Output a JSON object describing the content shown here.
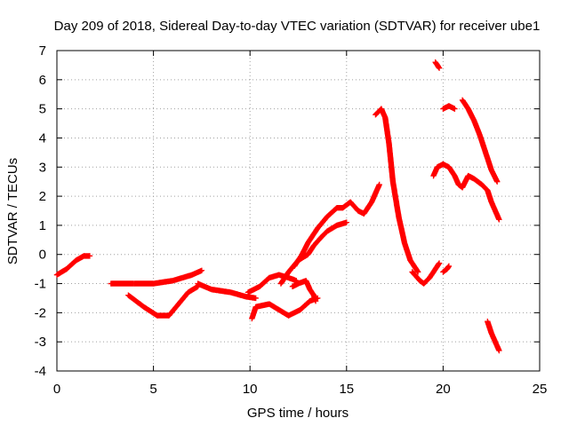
{
  "chart_data": {
    "type": "scatter",
    "title": "Day 209 of 2018, Sidereal Day-to-day VTEC variation (SDTVAR) for receiver ube1",
    "xlabel": "GPS time / hours",
    "ylabel": "SDTVAR / TECUs",
    "xlim": [
      0,
      25
    ],
    "ylim": [
      -4,
      7
    ],
    "xticks": [
      "0",
      "5",
      "10",
      "15",
      "20",
      "25"
    ],
    "yticks": [
      "-4",
      "-3",
      "-2",
      "-1",
      "0",
      "1",
      "2",
      "3",
      "4",
      "5",
      "6",
      "7"
    ],
    "grid": true,
    "marker": "+",
    "color": "#ff0000",
    "series": [
      {
        "name": "seg1",
        "x": [
          0,
          0.5,
          1.0,
          1.4,
          1.7
        ],
        "y": [
          -0.7,
          -0.5,
          -0.2,
          -0.05,
          -0.05
        ]
      },
      {
        "name": "seg2",
        "x": [
          2.8,
          4,
          5,
          6,
          6.5,
          7,
          7.5
        ],
        "y": [
          -1.0,
          -1.0,
          -1.0,
          -0.9,
          -0.8,
          -0.7,
          -0.55
        ]
      },
      {
        "name": "seg3",
        "x": [
          3.7,
          4.5,
          5.2,
          5.8,
          6.3,
          6.8,
          7.3
        ],
        "y": [
          -1.4,
          -1.8,
          -2.1,
          -2.1,
          -1.7,
          -1.3,
          -1.1
        ]
      },
      {
        "name": "seg4",
        "x": [
          7.3,
          8,
          9,
          9.8,
          10.3
        ],
        "y": [
          -1.0,
          -1.2,
          -1.3,
          -1.45,
          -1.5
        ]
      },
      {
        "name": "seg5",
        "x": [
          9.9,
          10.5,
          11.0,
          11.5,
          12.0,
          12.4
        ],
        "y": [
          -1.3,
          -1.1,
          -0.8,
          -0.7,
          -0.8,
          -0.9
        ]
      },
      {
        "name": "seg6",
        "x": [
          10.1,
          10.3,
          11,
          11.5,
          12,
          12.6,
          13.1,
          13.5
        ],
        "y": [
          -2.2,
          -1.8,
          -1.7,
          -1.9,
          -2.1,
          -1.9,
          -1.6,
          -1.5
        ]
      },
      {
        "name": "seg7",
        "x": [
          12.2,
          12.5,
          12.9,
          13.1,
          13.3,
          13.4
        ],
        "y": [
          -1.1,
          -1.0,
          -0.9,
          -1.2,
          -1.4,
          -1.6
        ]
      },
      {
        "name": "seg8",
        "x": [
          11.6,
          12.0,
          12.5,
          13.0,
          13.3,
          13.7,
          14.0,
          14.5,
          15.0
        ],
        "y": [
          -1.0,
          -0.6,
          -0.2,
          0.0,
          0.3,
          0.6,
          0.8,
          1.0,
          1.1
        ]
      },
      {
        "name": "seg9",
        "x": [
          12.3,
          12.7,
          13.0,
          13.5,
          14.0,
          14.5,
          14.8,
          15.2,
          15.6,
          15.9,
          16.3,
          16.7
        ],
        "y": [
          -0.4,
          0.0,
          0.4,
          0.9,
          1.3,
          1.6,
          1.6,
          1.8,
          1.5,
          1.4,
          1.8,
          2.4
        ]
      },
      {
        "name": "seg10",
        "x": [
          16.5,
          16.8,
          17.0,
          17.2,
          17.4,
          17.7,
          18.0,
          18.3,
          18.7
        ],
        "y": [
          4.8,
          5.0,
          4.7,
          3.8,
          2.5,
          1.3,
          0.4,
          -0.2,
          -0.6
        ]
      },
      {
        "name": "seg11",
        "x": [
          18.4,
          18.8,
          19.0,
          19.3,
          19.6,
          19.8
        ],
        "y": [
          -0.6,
          -0.9,
          -1.0,
          -0.8,
          -0.5,
          -0.3
        ]
      },
      {
        "name": "seg12",
        "x": [
          20.0,
          20.2,
          20.3
        ],
        "y": [
          -0.6,
          -0.5,
          -0.4
        ]
      },
      {
        "name": "seg13",
        "x": [
          19.6,
          19.8
        ],
        "y": [
          6.6,
          6.4
        ]
      },
      {
        "name": "seg14",
        "x": [
          20.0,
          20.3,
          20.6
        ],
        "y": [
          5.0,
          5.1,
          5.0
        ]
      },
      {
        "name": "seg15",
        "x": [
          19.5,
          19.7,
          20.0,
          20.3,
          20.6,
          20.8,
          21.0,
          21.3,
          21.6,
          22.0,
          22.3,
          22.5,
          22.7,
          22.9
        ],
        "y": [
          2.7,
          3.0,
          3.1,
          3.0,
          2.7,
          2.4,
          2.3,
          2.7,
          2.6,
          2.4,
          2.2,
          1.8,
          1.5,
          1.2
        ]
      },
      {
        "name": "seg16",
        "x": [
          21.0,
          21.3,
          21.6,
          21.9,
          22.2,
          22.5,
          22.8
        ],
        "y": [
          5.3,
          5.0,
          4.6,
          4.1,
          3.5,
          2.9,
          2.5
        ]
      },
      {
        "name": "seg17",
        "x": [
          22.3,
          22.5,
          22.7,
          22.9
        ],
        "y": [
          -2.3,
          -2.7,
          -3.0,
          -3.3
        ]
      }
    ]
  }
}
